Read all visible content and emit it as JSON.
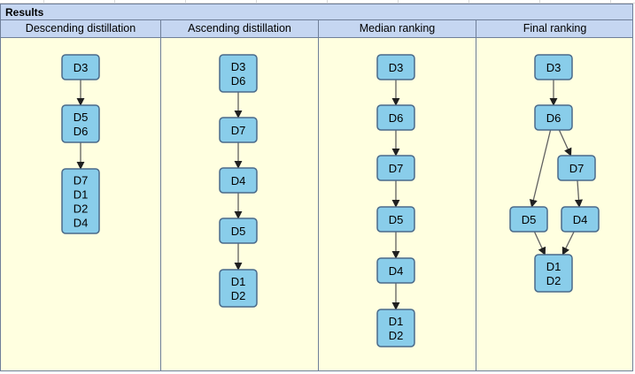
{
  "results_label": "Results",
  "columns": [
    {
      "title": "Descending distillation",
      "nodes": [
        {
          "id": "a1",
          "lines": [
            "D3"
          ]
        },
        {
          "id": "a2",
          "lines": [
            "D5",
            "D6"
          ]
        },
        {
          "id": "a3",
          "lines": [
            "D7",
            "D1",
            "D2",
            "D4"
          ]
        }
      ],
      "edges": [
        [
          "a1",
          "a2"
        ],
        [
          "a2",
          "a3"
        ]
      ]
    },
    {
      "title": "Ascending distillation",
      "nodes": [
        {
          "id": "b1",
          "lines": [
            "D3",
            "D6"
          ]
        },
        {
          "id": "b2",
          "lines": [
            "D7"
          ]
        },
        {
          "id": "b3",
          "lines": [
            "D4"
          ]
        },
        {
          "id": "b4",
          "lines": [
            "D5"
          ]
        },
        {
          "id": "b5",
          "lines": [
            "D1",
            "D2"
          ]
        }
      ],
      "edges": [
        [
          "b1",
          "b2"
        ],
        [
          "b2",
          "b3"
        ],
        [
          "b3",
          "b4"
        ],
        [
          "b4",
          "b5"
        ]
      ]
    },
    {
      "title": "Median ranking",
      "nodes": [
        {
          "id": "c1",
          "lines": [
            "D3"
          ]
        },
        {
          "id": "c2",
          "lines": [
            "D6"
          ]
        },
        {
          "id": "c3",
          "lines": [
            "D7"
          ]
        },
        {
          "id": "c4",
          "lines": [
            "D5"
          ]
        },
        {
          "id": "c5",
          "lines": [
            "D4"
          ]
        },
        {
          "id": "c6",
          "lines": [
            "D1",
            "D2"
          ]
        }
      ],
      "edges": [
        [
          "c1",
          "c2"
        ],
        [
          "c2",
          "c3"
        ],
        [
          "c3",
          "c4"
        ],
        [
          "c4",
          "c5"
        ],
        [
          "c5",
          "c6"
        ]
      ]
    },
    {
      "title": "Final ranking",
      "nodes": [
        {
          "id": "d1",
          "lines": [
            "D3"
          ]
        },
        {
          "id": "d2",
          "lines": [
            "D6"
          ]
        },
        {
          "id": "d3",
          "lines": [
            "D7"
          ]
        },
        {
          "id": "d4",
          "lines": [
            "D5"
          ]
        },
        {
          "id": "d5",
          "lines": [
            "D4"
          ]
        },
        {
          "id": "d6",
          "lines": [
            "D1",
            "D2"
          ]
        }
      ],
      "edges": [
        [
          "d1",
          "d2"
        ],
        [
          "d2",
          "d3"
        ],
        [
          "d2",
          "d4"
        ],
        [
          "d3",
          "d5"
        ],
        [
          "d4",
          "d6"
        ],
        [
          "d5",
          "d6"
        ]
      ]
    }
  ]
}
